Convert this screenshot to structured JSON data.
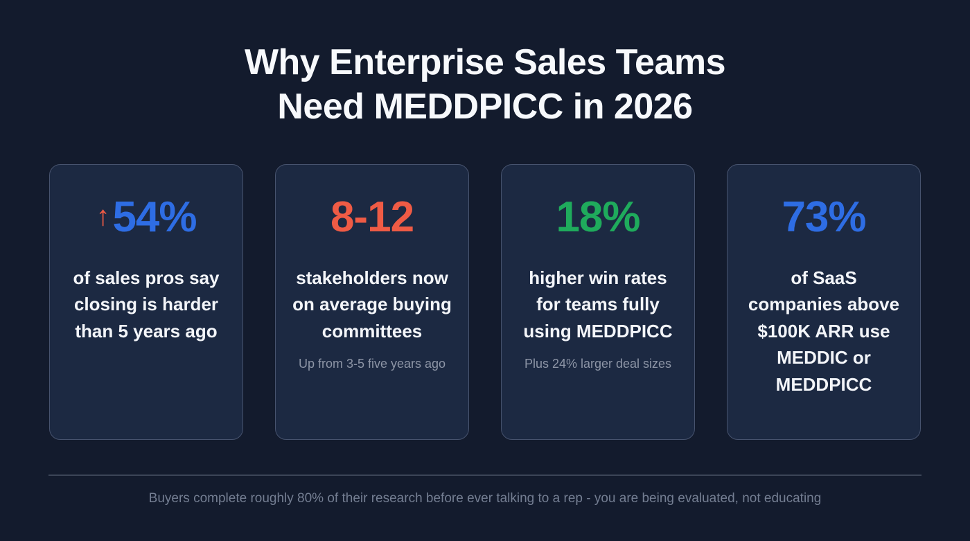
{
  "title": {
    "line1": "Why Enterprise Sales Teams",
    "line2": "Need MEDDPICC in 2026"
  },
  "colors": {
    "background": "#131b2d",
    "card_background": "#1c2942",
    "card_border": "#47536e",
    "blue": "#2e6de4",
    "orange": "#ef5b45",
    "green": "#1fab5c",
    "white_text": "#f3f5f9",
    "gray_text": "#8d95a6",
    "footer_text": "#747e92"
  },
  "cards": [
    {
      "arrow": "↑",
      "stat": "54%",
      "stat_color": "#2e6de4",
      "body": "of sales pros say closing is harder than 5 years ago",
      "caption": ""
    },
    {
      "arrow": "",
      "stat": "8-12",
      "stat_color": "#ef5b45",
      "body": "stakeholders now on average buying committees",
      "caption": "Up from 3-5 five years ago"
    },
    {
      "arrow": "",
      "stat": "18%",
      "stat_color": "#1fab5c",
      "body": "higher win rates for teams fully using MEDDPICC",
      "caption": "Plus 24% larger deal sizes"
    },
    {
      "arrow": "",
      "stat": "73%",
      "stat_color": "#2e6de4",
      "body": "of SaaS companies above $100K ARR use MEDDIC or MEDDPICC",
      "caption": ""
    }
  ],
  "footer": "Buyers complete roughly 80% of their research before ever talking to a rep - you are being evaluated, not educating",
  "chart_data": {
    "type": "table",
    "title": "Why Enterprise Sales Teams Need MEDDPICC in 2026",
    "stats": [
      {
        "value": "54%",
        "trend": "up",
        "label": "of sales pros say closing is harder than 5 years ago",
        "note": ""
      },
      {
        "value": "8-12",
        "trend": "",
        "label": "stakeholders now on average buying committees",
        "note": "Up from 3-5 five years ago"
      },
      {
        "value": "18%",
        "trend": "",
        "label": "higher win rates for teams fully using MEDDPICC",
        "note": "Plus 24% larger deal sizes"
      },
      {
        "value": "73%",
        "trend": "",
        "label": "of SaaS companies above $100K ARR use MEDDIC or MEDDPICC",
        "note": ""
      }
    ],
    "footnote": "Buyers complete roughly 80% of their research before ever talking to a rep - you are being evaluated, not educating"
  }
}
